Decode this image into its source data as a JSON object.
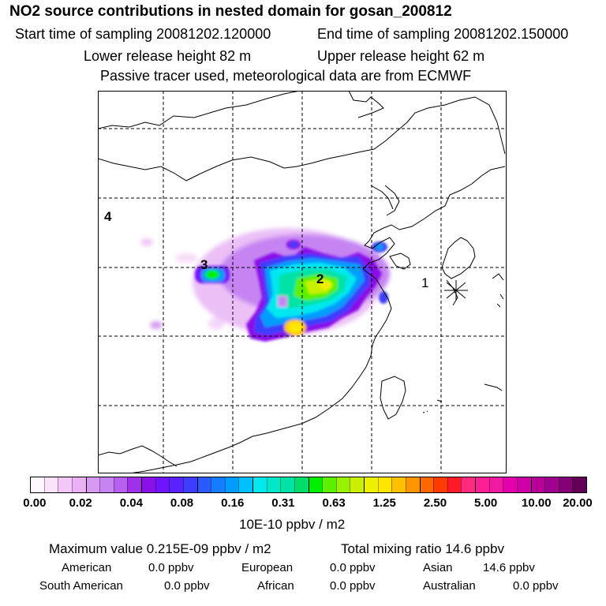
{
  "header": {
    "title": "NO2 source contributions in nested domain for gosan_200812",
    "start_time": "Start time of sampling 20081202.120000",
    "end_time": "End time of sampling 20081202.150000",
    "lower_height": "Lower release height   82 m",
    "upper_height": "Upper release height   62 m",
    "tracer_note": "Passive tracer used, meteorological data are from ECMWF"
  },
  "map": {
    "region_labels": [
      "1",
      "2",
      "3",
      "4"
    ],
    "receptor_marker": "star-marker"
  },
  "colorbar": {
    "colors": [
      "#fff6ff",
      "#fbe4fb",
      "#f3c7f7",
      "#eab2f5",
      "#d69af0",
      "#c584f2",
      "#b760f0",
      "#a030ea",
      "#8a10e8",
      "#6e14ff",
      "#5a22ff",
      "#3e3cff",
      "#2a5aff",
      "#147cff",
      "#009cff",
      "#00c0ff",
      "#00e8ee",
      "#00e8c8",
      "#00e2a6",
      "#00de6a",
      "#00ee00",
      "#5cf000",
      "#96f200",
      "#c8f000",
      "#eef000",
      "#ffe600",
      "#ffc000",
      "#ff9600",
      "#ff6800",
      "#ff3a00",
      "#ff1a2a",
      "#ff2a7e",
      "#ff1e96",
      "#f01aa2",
      "#e400aa",
      "#d000a8",
      "#b80098",
      "#a00090",
      "#840074",
      "#620058"
    ],
    "tick_labels": [
      "0.00",
      "0.02",
      "0.04",
      "0.08",
      "0.16",
      "0.31",
      "0.63",
      "1.25",
      "2.50",
      "5.00",
      "10.00",
      "20.00"
    ],
    "units": "10E-10 ppbv / m2"
  },
  "summary": {
    "max_value": "Maximum value  0.215E-09 ppbv / m2",
    "total_mixing": "Total mixing ratio        14.6 ppbv",
    "american_label": "American",
    "american_value": "0.0 ppbv",
    "european_label": "European",
    "european_value": "0.0 ppbv",
    "asian_label": "Asian",
    "asian_value": "14.6 ppbv",
    "south_american_label": "South American",
    "south_american_value": "0.0 ppbv",
    "african_label": "African",
    "african_value": "0.0 ppbv",
    "australian_label": "Australian",
    "australian_value": "0.0 ppbv"
  }
}
